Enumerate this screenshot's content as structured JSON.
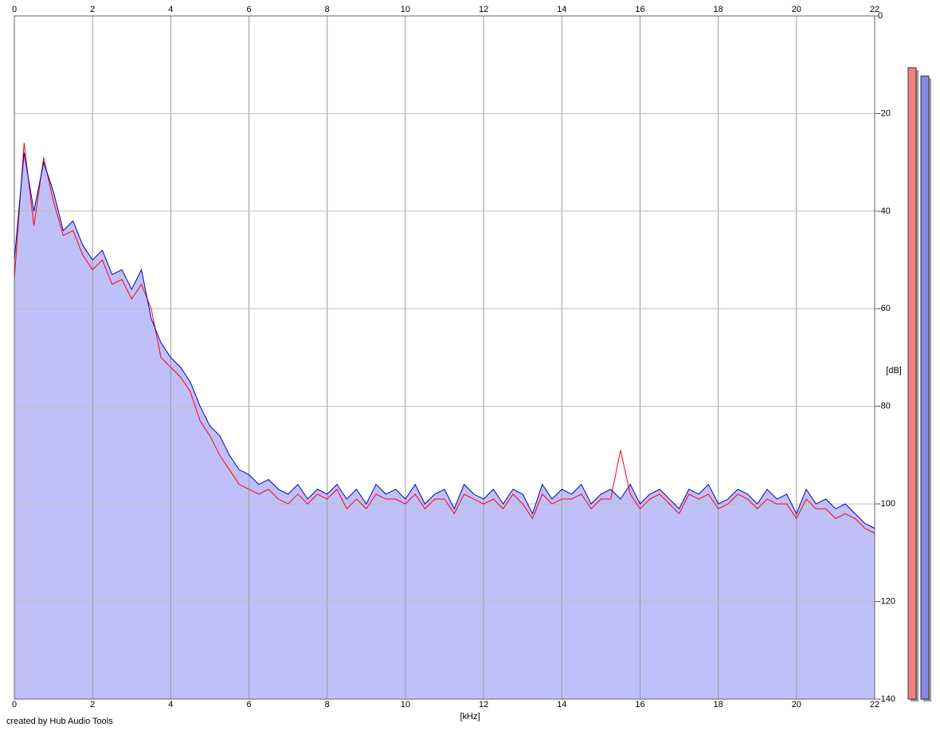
{
  "chart_data": {
    "type": "spectrum",
    "x_label": "[kHz]",
    "y_label": "[dB]",
    "credit": "created by Hub Audio Tools",
    "xlim": [
      0,
      22
    ],
    "xticks": [
      0,
      2,
      4,
      6,
      8,
      10,
      12,
      14,
      16,
      18,
      20,
      22
    ],
    "ylim": [
      -140,
      0
    ],
    "yticks": [
      0,
      -20,
      -40,
      -60,
      -80,
      -100,
      -120,
      -140
    ],
    "grid": true,
    "fill_color": "#c0c0f8",
    "x": [
      0,
      0.25,
      0.5,
      0.75,
      1,
      1.25,
      1.5,
      1.75,
      2,
      2.25,
      2.5,
      2.75,
      3,
      3.25,
      3.5,
      3.75,
      4,
      4.25,
      4.5,
      4.75,
      5,
      5.25,
      5.5,
      5.75,
      6,
      6.25,
      6.5,
      6.75,
      7,
      7.25,
      7.5,
      7.75,
      8,
      8.25,
      8.5,
      8.75,
      9,
      9.25,
      9.5,
      9.75,
      10,
      10.25,
      10.5,
      10.75,
      11,
      11.25,
      11.5,
      11.75,
      12,
      12.25,
      12.5,
      12.75,
      13,
      13.25,
      13.5,
      13.75,
      14,
      14.25,
      14.5,
      14.75,
      15,
      15.25,
      15.5,
      15.75,
      16,
      16.25,
      16.5,
      16.75,
      17,
      17.25,
      17.5,
      17.75,
      18,
      18.25,
      18.5,
      18.75,
      19,
      19.25,
      19.5,
      19.75,
      20,
      20.25,
      20.5,
      20.75,
      21,
      21.25,
      21.5,
      21.75,
      22
    ],
    "series": [
      {
        "color": "#ff0000",
        "values": [
          -54,
          -26,
          -43,
          -29,
          -38,
          -45,
          -44,
          -49,
          -52,
          -50,
          -55,
          -54,
          -58,
          -55,
          -60,
          -70,
          -72,
          -74,
          -77,
          -83,
          -86,
          -90,
          -93,
          -96,
          -97,
          -98,
          -97,
          -99,
          -100,
          -98,
          -100,
          -98,
          -99,
          -97,
          -101,
          -99,
          -101,
          -98,
          -99,
          -99,
          -100,
          -98,
          -101,
          -99,
          -99,
          -102,
          -98,
          -99,
          -100,
          -99,
          -101,
          -98,
          -100,
          -103,
          -98,
          -100,
          -99,
          -99,
          -98,
          -101,
          -99,
          -99,
          -89,
          -98,
          -101,
          -99,
          -98,
          -100,
          -102,
          -98,
          -99,
          -98,
          -101,
          -100,
          -98,
          -99,
          -101,
          -99,
          -100,
          -100,
          -103,
          -99,
          -101,
          -101,
          -103,
          -102,
          -103,
          -105,
          -106
        ]
      },
      {
        "color": "#0000c0",
        "values": [
          -50,
          -28,
          -40,
          -30,
          -36,
          -44,
          -42,
          -47,
          -50,
          -48,
          -53,
          -52,
          -56,
          -52,
          -62,
          -67,
          -70,
          -72,
          -75,
          -80,
          -84,
          -86,
          -90,
          -93,
          -94,
          -96,
          -95,
          -97,
          -98,
          -96,
          -99,
          -97,
          -98,
          -96,
          -99,
          -97,
          -100,
          -96,
          -98,
          -97,
          -99,
          -96,
          -100,
          -98,
          -97,
          -101,
          -96,
          -98,
          -99,
          -97,
          -100,
          -97,
          -98,
          -102,
          -96,
          -99,
          -97,
          -98,
          -96,
          -100,
          -98,
          -97,
          -99,
          -96,
          -100,
          -98,
          -97,
          -99,
          -101,
          -97,
          -98,
          -96,
          -100,
          -99,
          -97,
          -98,
          -100,
          -97,
          -99,
          -98,
          -102,
          -97,
          -100,
          -99,
          -101,
          -100,
          -102,
          -104,
          -105
        ]
      }
    ],
    "meters": [
      {
        "color": "#f08080",
        "value": -10.6
      },
      {
        "color": "#8888e8",
        "value": -12.3
      }
    ]
  }
}
